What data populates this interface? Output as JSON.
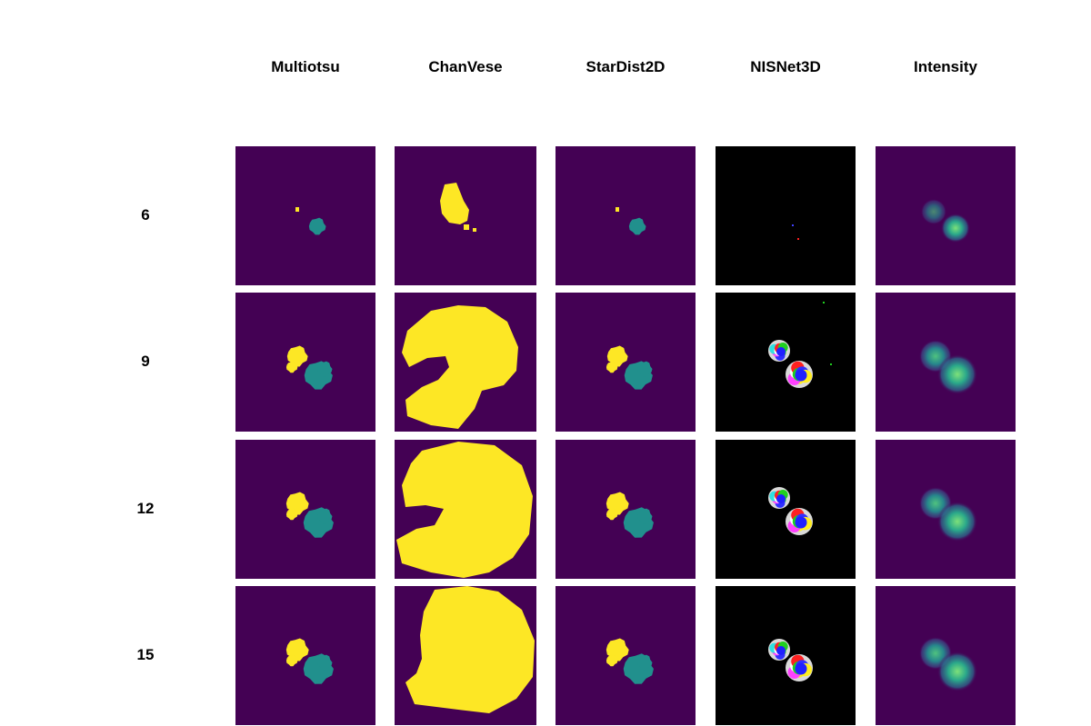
{
  "columns": [
    {
      "label": "Multiotsu",
      "kind": "multiotsu"
    },
    {
      "label": "ChanVese",
      "kind": "chanvese"
    },
    {
      "label": "StarDist2D",
      "kind": "stardist"
    },
    {
      "label": "NISNet3D",
      "kind": "nisnet"
    },
    {
      "label": "Intensity",
      "kind": "intensity"
    }
  ],
  "rows": [
    {
      "label": "6"
    },
    {
      "label": "9"
    },
    {
      "label": "12"
    },
    {
      "label": "15"
    }
  ],
  "colors": {
    "background_purple": "#440154",
    "teal": "#21908d",
    "yellow": "#fde725",
    "black": "#000000",
    "nuclei_green": "#3cc77c"
  }
}
